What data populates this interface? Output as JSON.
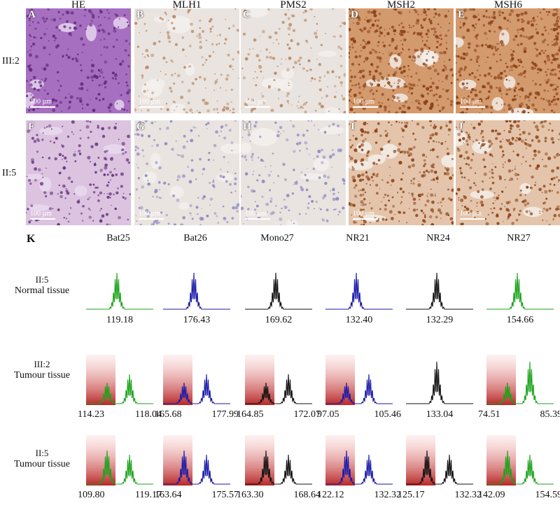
{
  "ihc": {
    "columns": [
      "HE",
      "MLH1",
      "PMS2",
      "MSH2",
      "MSH6"
    ],
    "rows": [
      {
        "label": "III:2",
        "panels": [
          "A",
          "B",
          "C",
          "D",
          "E"
        ]
      },
      {
        "label": "II:5",
        "panels": [
          "F",
          "G",
          "H",
          "I",
          "J"
        ]
      }
    ],
    "scale_bar": "100 µm",
    "stain_colors": {
      "he": "#b07cc3",
      "hematoxylin": "#d9d7e6",
      "dab_negative": "#eae4e0",
      "dab_positive": "#b46a3a"
    }
  },
  "msi": {
    "panel_letter": "K",
    "markers": [
      "Bat25",
      "Bat26",
      "Mono27",
      "NR21",
      "NR24",
      "NR27"
    ],
    "marker_colors": [
      "#1aa31a",
      "#1a1aaa",
      "#111111",
      "#1a1aaa",
      "#111111",
      "#1aa31a"
    ],
    "rows": [
      {
        "label_lines": [
          "II:5",
          "Normal tissue"
        ],
        "sizes": [
          [
            "119.18"
          ],
          [
            "176.43"
          ],
          [
            "169.62"
          ],
          [
            "132.40"
          ],
          [
            "132.29"
          ],
          [
            "154.66"
          ]
        ],
        "shaded": [
          false,
          false,
          false,
          false,
          false,
          false
        ]
      },
      {
        "label_lines": [
          "III:2",
          "Tumour tissue"
        ],
        "sizes": [
          [
            "114.23",
            "118.04"
          ],
          [
            "165.68",
            "177.99"
          ],
          [
            "164.85",
            "172.07"
          ],
          [
            "97.05",
            "105.46"
          ],
          [
            "133.04"
          ],
          [
            "74.51",
            "85.39"
          ]
        ],
        "shaded": [
          true,
          true,
          true,
          true,
          false,
          true
        ]
      },
      {
        "label_lines": [
          "II:5",
          "Tumour tissue"
        ],
        "sizes": [
          [
            "109.80",
            "119.17"
          ],
          [
            "163.64",
            "175.57"
          ],
          [
            "163.30",
            "168.64"
          ],
          [
            "122.12",
            "132.32"
          ],
          [
            "125.17",
            "132.32"
          ],
          [
            "142.09",
            "154.59"
          ]
        ],
        "shaded": [
          true,
          true,
          true,
          true,
          true,
          true
        ]
      }
    ]
  }
}
